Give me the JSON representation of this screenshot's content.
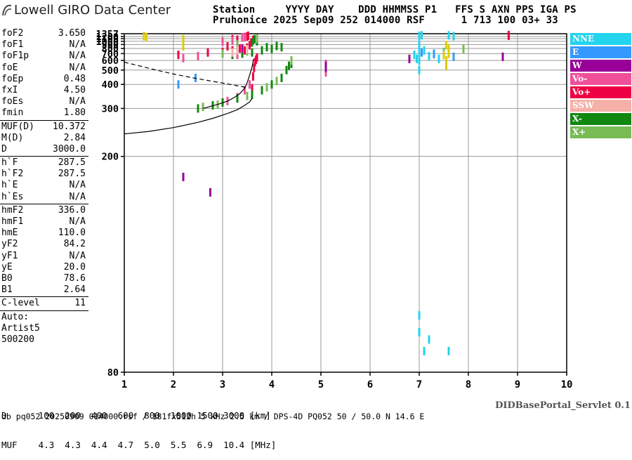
{
  "brand": {
    "logo_text": "Lowell GIRO Data Center",
    "logo_icon": "ionogram-logo-icon"
  },
  "header": {
    "line1": "Station     YYYY DAY    DDD HHMMSS P1   FFS S AXN PPS IGA PS",
    "line2": "Pruhonice 2025 Sep09 252 014000 RSF      1 713 100 03+ 33"
  },
  "parameters": [
    {
      "name": "foF2",
      "value": "3.650"
    },
    {
      "name": "foF1",
      "value": "N/A"
    },
    {
      "name": "foF1p",
      "value": "N/A"
    },
    {
      "name": "foE",
      "value": "N/A"
    },
    {
      "name": "foEp",
      "value": "0.48"
    },
    {
      "name": "fxI",
      "value": "4.50"
    },
    {
      "name": "foEs",
      "value": "N/A"
    },
    {
      "name": "fmin",
      "value": "1.80"
    },
    {
      "name": "MUF(D)",
      "value": "10.372"
    },
    {
      "name": "M(D)",
      "value": "2.84"
    },
    {
      "name": "D",
      "value": "3000.0"
    },
    {
      "name": "h`F",
      "value": "287.5"
    },
    {
      "name": "h`F2",
      "value": "287.5"
    },
    {
      "name": "h`E",
      "value": "N/A"
    },
    {
      "name": "h`Es",
      "value": "N/A"
    },
    {
      "name": "hmF2",
      "value": "336.0"
    },
    {
      "name": "hmF1",
      "value": "N/A"
    },
    {
      "name": "hmE",
      "value": "110.0"
    },
    {
      "name": "yF2",
      "value": "84.2"
    },
    {
      "name": "yF1",
      "value": "N/A"
    },
    {
      "name": "yE",
      "value": "20.0"
    },
    {
      "name": "B0",
      "value": "78.6"
    },
    {
      "name": "B1",
      "value": "2.64"
    },
    {
      "name": "C-level",
      "value": "11"
    }
  ],
  "auto": {
    "line1": "Auto:",
    "line2": "Artist5",
    "line3": "500200"
  },
  "legend": [
    {
      "label": "NNE",
      "color": "#22d4ee"
    },
    {
      "label": "E",
      "color": "#3399ff"
    },
    {
      "label": "W",
      "color": "#990099"
    },
    {
      "label": "Vo-",
      "color": "#f0509a"
    },
    {
      "label": "Vo+",
      "color": "#ee0044"
    },
    {
      "label": "SSW",
      "color": "#f5b0a8"
    },
    {
      "label": "X-",
      "color": "#118811"
    },
    {
      "label": "X+",
      "color": "#77bb55"
    }
  ],
  "muf_table": {
    "line1": "D      100  200  400  600  800  1000 1500 3000 [km]",
    "line2": "MUF    4.3  4.3  4.4  4.7  5.0  5.5  6.9  10.4 [MHz]"
  },
  "servlet_label": "DIDBasePortal_Servlet 0.1",
  "footer": "db pq052 20250909 014000.rsf / 181fx512h 5 kHz 2.5 km / DPS-4D PQ052 50 / 50.0 N 14.6 E",
  "chart_data": {
    "type": "scatter",
    "title": "",
    "xlabel": "",
    "ylabel": "",
    "xlim": [
      1,
      10
    ],
    "ylim": [
      80,
      1357
    ],
    "y_scale": "reciprocal",
    "x_ticks": [
      1,
      2,
      3,
      4,
      5,
      6,
      7,
      8,
      9,
      10
    ],
    "y_ticks": [
      80,
      200,
      300,
      400,
      500,
      600,
      700,
      800,
      900,
      1000,
      1100,
      1200,
      1357
    ],
    "grid": true,
    "series": [
      {
        "name": "Vo+",
        "color": "#ee0044",
        "points": [
          [
            3.6,
            380
          ],
          [
            3.62,
            450
          ],
          [
            3.64,
            520
          ],
          [
            3.66,
            580
          ],
          [
            3.68,
            610
          ],
          [
            3.7,
            640
          ],
          [
            3.45,
            760
          ],
          [
            3.5,
            820
          ],
          [
            3.55,
            880
          ],
          [
            3.58,
            960
          ],
          [
            3.62,
            1050
          ],
          [
            3.5,
            1200
          ],
          [
            3.52,
            1240
          ],
          [
            8.82,
            1240
          ],
          [
            8.82,
            1280
          ],
          [
            3.2,
            1080
          ],
          [
            3.3,
            1060
          ],
          [
            2.1,
            680
          ],
          [
            2.7,
            720
          ],
          [
            3.0,
            730
          ],
          [
            3.2,
            760
          ],
          [
            3.35,
            800
          ],
          [
            3.1,
            850
          ]
        ]
      },
      {
        "name": "Vo-",
        "color": "#f0509a",
        "points": [
          [
            3.0,
            320
          ],
          [
            3.1,
            325
          ],
          [
            3.3,
            340
          ],
          [
            3.45,
            370
          ],
          [
            3.55,
            400
          ],
          [
            3.3,
            680
          ],
          [
            3.4,
            700
          ],
          [
            2.5,
            660
          ],
          [
            3.0,
            990
          ],
          [
            3.2,
            1020
          ],
          [
            3.4,
            1150
          ],
          [
            3.45,
            1180
          ],
          [
            5.1,
            480
          ],
          [
            5.1,
            560
          ],
          [
            6.8,
            620
          ],
          [
            2.2,
            630
          ]
        ]
      },
      {
        "name": "X-",
        "color": "#118811",
        "points": [
          [
            2.5,
            300
          ],
          [
            2.8,
            310
          ],
          [
            3.0,
            320
          ],
          [
            3.3,
            335
          ],
          [
            3.6,
            350
          ],
          [
            3.8,
            370
          ],
          [
            4.0,
            400
          ],
          [
            4.2,
            440
          ],
          [
            4.3,
            500
          ],
          [
            4.35,
            540
          ],
          [
            4.4,
            560
          ],
          [
            3.2,
            680
          ],
          [
            3.4,
            700
          ],
          [
            3.6,
            720
          ],
          [
            3.8,
            760
          ],
          [
            4.0,
            790
          ],
          [
            4.2,
            830
          ],
          [
            3.9,
            830
          ],
          [
            4.1,
            860
          ],
          [
            3.6,
            960
          ],
          [
            3.7,
            1000
          ],
          [
            3.65,
            1080
          ]
        ]
      },
      {
        "name": "X+",
        "color": "#77bb55",
        "points": [
          [
            2.6,
            305
          ],
          [
            2.9,
            312
          ],
          [
            3.5,
            345
          ],
          [
            3.9,
            385
          ],
          [
            4.1,
            420
          ],
          [
            4.4,
            600
          ],
          [
            3.0,
            700
          ],
          [
            3.5,
            740
          ],
          [
            3.3,
            900
          ],
          [
            3.7,
            1100
          ],
          [
            7.5,
            730
          ],
          [
            7.9,
            790
          ]
        ]
      },
      {
        "name": "NNE",
        "color": "#22d4ee",
        "points": [
          [
            7.0,
            500
          ],
          [
            7.0,
            600
          ],
          [
            7.0,
            700
          ],
          [
            7.0,
            800
          ],
          [
            7.0,
            900
          ],
          [
            6.95,
            620
          ],
          [
            7.1,
            760
          ],
          [
            7.2,
            660
          ],
          [
            7.3,
            700
          ],
          [
            7.4,
            620
          ],
          [
            7.5,
            700
          ],
          [
            7.6,
            800
          ],
          [
            6.9,
            680
          ],
          [
            7.0,
            1240
          ],
          [
            7.05,
            1260
          ],
          [
            7.6,
            1260
          ],
          [
            7.7,
            1220
          ],
          [
            7.0,
            90
          ],
          [
            7.0,
            95
          ],
          [
            7.1,
            85
          ],
          [
            7.2,
            88
          ],
          [
            7.6,
            85
          ]
        ]
      },
      {
        "name": "E",
        "color": "#3399ff",
        "points": [
          [
            7.05,
            720
          ],
          [
            7.3,
            690
          ],
          [
            7.7,
            650
          ],
          [
            2.45,
            440
          ],
          [
            2.1,
            400
          ]
        ]
      },
      {
        "name": "W",
        "color": "#990099",
        "points": [
          [
            3.4,
            800
          ],
          [
            5.1,
            520
          ],
          [
            5.1,
            540
          ],
          [
            6.8,
            620
          ],
          [
            7.6,
            700
          ],
          [
            8.7,
            650
          ],
          [
            2.75,
            160
          ],
          [
            2.2,
            175
          ]
        ]
      },
      {
        "name": "SSW",
        "color": "#f5b0a8",
        "points": [
          [
            3.2,
            720
          ],
          [
            3.3,
            760
          ],
          [
            3.5,
            780
          ]
        ]
      },
      {
        "name": "yellow",
        "color": "#ddcc00",
        "points": [
          [
            7.55,
            540
          ],
          [
            7.55,
            600
          ],
          [
            7.6,
            700
          ],
          [
            7.6,
            800
          ],
          [
            7.5,
            680
          ],
          [
            2.2,
            850
          ],
          [
            2.2,
            1080
          ],
          [
            1.4,
            1220
          ],
          [
            1.45,
            1160
          ],
          [
            7.55,
            880
          ]
        ]
      }
    ],
    "profile_curves": [
      {
        "name": "N(h) profile solid",
        "style": "solid",
        "points": [
          [
            1.0,
            237
          ],
          [
            1.5,
            242
          ],
          [
            2.0,
            250
          ],
          [
            2.5,
            262
          ],
          [
            2.8,
            272
          ],
          [
            3.1,
            285
          ],
          [
            3.3,
            296
          ],
          [
            3.45,
            310
          ],
          [
            3.55,
            322
          ],
          [
            3.6,
            335
          ]
        ]
      },
      {
        "name": "N(h) profile fitted",
        "style": "solid",
        "points": [
          [
            2.6,
            300
          ],
          [
            2.9,
            313
          ],
          [
            3.1,
            325
          ],
          [
            3.25,
            340
          ],
          [
            3.35,
            355
          ],
          [
            3.45,
            380
          ],
          [
            3.5,
            410
          ],
          [
            3.55,
            460
          ],
          [
            3.6,
            530
          ],
          [
            3.63,
            620
          ]
        ]
      },
      {
        "name": "MUF curve",
        "style": "dashed",
        "points": [
          [
            1.0,
            580
          ],
          [
            1.3,
            540
          ],
          [
            1.6,
            505
          ],
          [
            2.0,
            468
          ],
          [
            2.4,
            440
          ],
          [
            2.8,
            418
          ],
          [
            3.1,
            403
          ],
          [
            3.3,
            393
          ],
          [
            3.5,
            383
          ]
        ]
      }
    ]
  }
}
